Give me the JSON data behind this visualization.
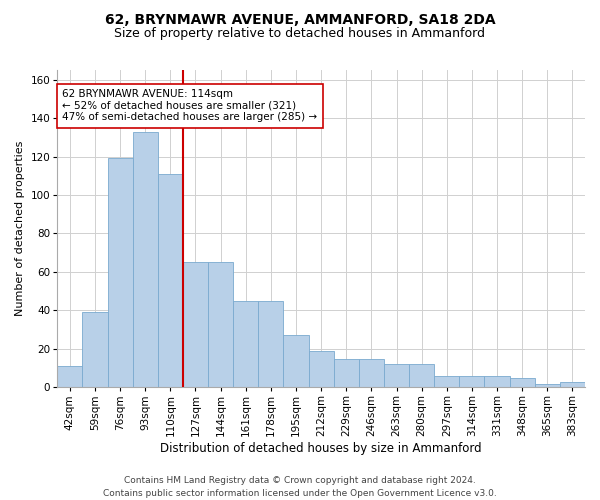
{
  "title": "62, BRYNMAWR AVENUE, AMMANFORD, SA18 2DA",
  "subtitle": "Size of property relative to detached houses in Ammanford",
  "xlabel": "Distribution of detached houses by size in Ammanford",
  "ylabel": "Number of detached properties",
  "categories": [
    "42sqm",
    "59sqm",
    "76sqm",
    "93sqm",
    "110sqm",
    "127sqm",
    "144sqm",
    "161sqm",
    "178sqm",
    "195sqm",
    "212sqm",
    "229sqm",
    "246sqm",
    "263sqm",
    "280sqm",
    "297sqm",
    "314sqm",
    "331sqm",
    "348sqm",
    "365sqm",
    "383sqm"
  ],
  "values": [
    11,
    39,
    119,
    133,
    111,
    65,
    65,
    45,
    45,
    27,
    19,
    15,
    15,
    12,
    12,
    6,
    6,
    6,
    5,
    2,
    3
  ],
  "bar_color": "#b8d0e8",
  "bar_edge_color": "#7aaacf",
  "vline_color": "#cc0000",
  "vline_index": 4.5,
  "annotation_text": "62 BRYNMAWR AVENUE: 114sqm\n← 52% of detached houses are smaller (321)\n47% of semi-detached houses are larger (285) →",
  "annotation_box_facecolor": "#ffffff",
  "annotation_box_edgecolor": "#cc0000",
  "ylim": [
    0,
    165
  ],
  "yticks": [
    0,
    20,
    40,
    60,
    80,
    100,
    120,
    140,
    160
  ],
  "footer": "Contains HM Land Registry data © Crown copyright and database right 2024.\nContains public sector information licensed under the Open Government Licence v3.0.",
  "title_fontsize": 10,
  "subtitle_fontsize": 9,
  "xlabel_fontsize": 8.5,
  "ylabel_fontsize": 8,
  "tick_fontsize": 7.5,
  "annotation_fontsize": 7.5,
  "footer_fontsize": 6.5
}
